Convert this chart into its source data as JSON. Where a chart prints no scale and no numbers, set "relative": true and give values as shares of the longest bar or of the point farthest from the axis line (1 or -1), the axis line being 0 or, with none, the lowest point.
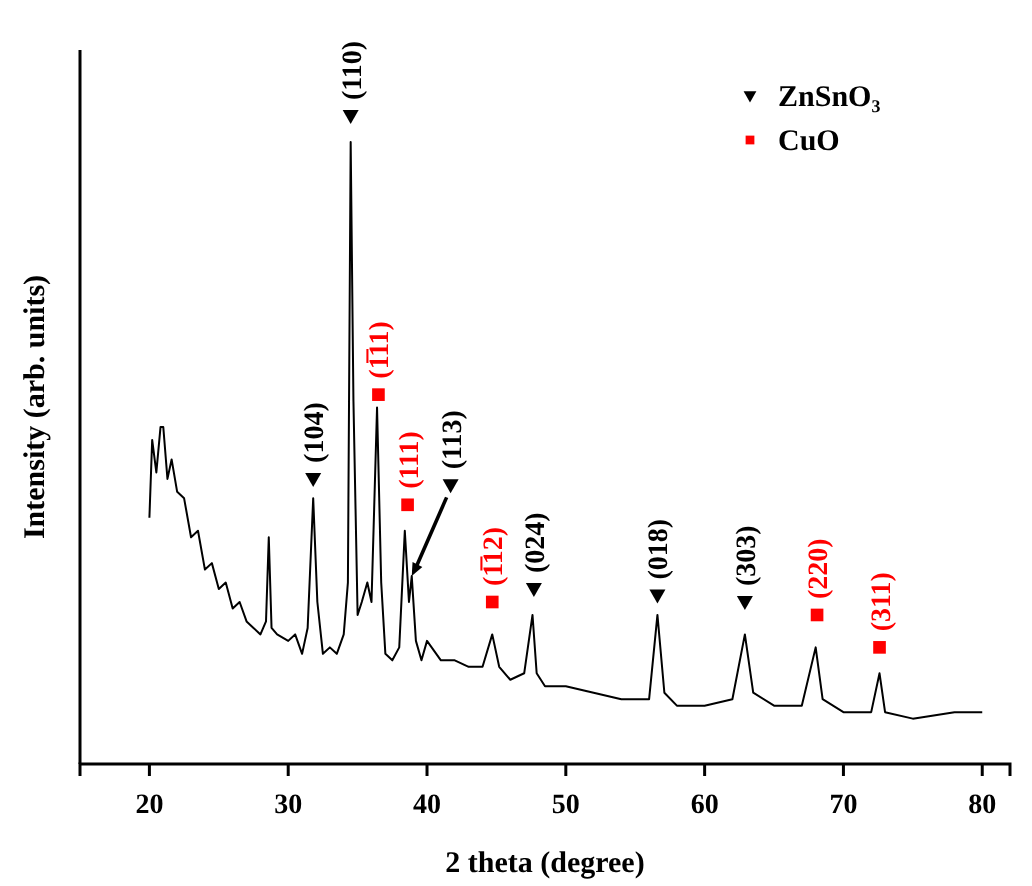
{
  "chart_data": {
    "type": "line",
    "relative": true,
    "xlabel": "2 theta (degree)",
    "ylabel": "Intensity (arb. units)",
    "xlim": [
      15,
      82
    ],
    "xticks": [
      20,
      30,
      40,
      50,
      60,
      70,
      80
    ],
    "tick_labels": "x",
    "legend": "top right",
    "grid": false,
    "series": [
      {
        "color": "#000000",
        "x": [
          20,
          20.2,
          20.5,
          20.8,
          21,
          21.3,
          21.6,
          22,
          22.5,
          23,
          23.5,
          24,
          24.5,
          25,
          25.5,
          26,
          26.5,
          27,
          27.5,
          28,
          28.4,
          28.6,
          28.8,
          29.2,
          30,
          30.5,
          31,
          31.4,
          31.8,
          32.1,
          32.5,
          33,
          33.5,
          34,
          34.3,
          34.5,
          34.7,
          35,
          35.3,
          35.7,
          36,
          36.4,
          36.7,
          37,
          37.5,
          38,
          38.4,
          38.7,
          38.9,
          39.2,
          39.6,
          40,
          41,
          42,
          43,
          44,
          44.7,
          45.2,
          46,
          47,
          47.6,
          47.9,
          48.5,
          50,
          52,
          54,
          55,
          56,
          56.6,
          57.1,
          58,
          60,
          62,
          62.9,
          63.5,
          65,
          67,
          68,
          68.5,
          70,
          72,
          72.6,
          73,
          75,
          78,
          80
        ],
        "values": [
          0.38,
          0.5,
          0.45,
          0.52,
          0.52,
          0.44,
          0.47,
          0.42,
          0.41,
          0.35,
          0.36,
          0.3,
          0.31,
          0.27,
          0.28,
          0.24,
          0.25,
          0.22,
          0.21,
          0.2,
          0.22,
          0.35,
          0.21,
          0.2,
          0.19,
          0.2,
          0.17,
          0.21,
          0.41,
          0.25,
          0.17,
          0.18,
          0.17,
          0.2,
          0.28,
          0.96,
          0.56,
          0.23,
          0.25,
          0.28,
          0.25,
          0.55,
          0.28,
          0.17,
          0.16,
          0.18,
          0.36,
          0.25,
          0.29,
          0.19,
          0.16,
          0.19,
          0.16,
          0.16,
          0.15,
          0.15,
          0.2,
          0.15,
          0.13,
          0.14,
          0.23,
          0.14,
          0.12,
          0.12,
          0.11,
          0.1,
          0.1,
          0.1,
          0.23,
          0.11,
          0.09,
          0.09,
          0.1,
          0.2,
          0.11,
          0.09,
          0.09,
          0.18,
          0.1,
          0.08,
          0.08,
          0.14,
          0.08,
          0.07,
          0.08,
          0.08
        ]
      },
      {
        "type": "scatter",
        "name": "ZnSnO₃",
        "color": "#000000",
        "marker": "triangle",
        "x": [
          31.8,
          34.5,
          41.7,
          47.7,
          56.6,
          62.9
        ],
        "values": [
          0.44,
          1,
          0.43,
          0.27,
          0.26,
          0.25
        ]
      },
      {
        "type": "scatter",
        "name": "CuO",
        "color": "#ff0000",
        "marker": "square",
        "x": [
          36.5,
          38.6,
          44.7,
          68.1,
          72.6
        ],
        "values": [
          0.57,
          0.4,
          0.25,
          0.23,
          0.18
        ]
      }
    ],
    "annotations": [
      {
        "text": "(104)",
        "x": 31.8,
        "y": 0.44
      },
      {
        "text": "(110)",
        "x": 34.5,
        "y": 1
      },
      {
        "text": "(1̅11)",
        "x": 36.5,
        "y": 0.57
      },
      {
        "text": "(111)",
        "x": 38.6,
        "y": 0.4
      },
      {
        "text": "(113)",
        "x": 38.9,
        "y": 0.29
      },
      {
        "text": "(1̅12)",
        "x": 44.7,
        "y": 0.25
      },
      {
        "text": "(024)",
        "x": 47.7,
        "y": 0.27
      },
      {
        "text": "(018)",
        "x": 56.6,
        "y": 0.26
      },
      {
        "text": "(303)",
        "x": 62.9,
        "y": 0.25
      },
      {
        "text": "(220)",
        "x": 68.1,
        "y": 0.23
      },
      {
        "text": "(311)",
        "x": 72.6,
        "y": 0.18
      }
    ]
  }
}
